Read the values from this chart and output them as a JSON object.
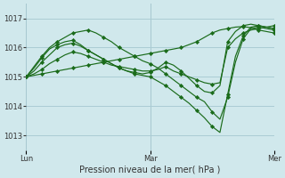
{
  "xlabel": "Pression niveau de la mer( hPa )",
  "bg_color": "#d0e8ec",
  "grid_color": "#aaccd4",
  "line_color": "#1a6b1a",
  "marker_color": "#1a6b1a",
  "ylim": [
    1012.5,
    1017.5
  ],
  "yticks": [
    1013,
    1014,
    1015,
    1016,
    1017
  ],
  "day_labels": [
    "Lun",
    "Mar",
    "Mer"
  ],
  "day_positions": [
    0,
    16,
    32
  ],
  "xlim": [
    0,
    32
  ],
  "lines": [
    [
      1015.0,
      1015.05,
      1015.1,
      1015.15,
      1015.2,
      1015.25,
      1015.3,
      1015.35,
      1015.4,
      1015.45,
      1015.5,
      1015.55,
      1015.6,
      1015.65,
      1015.7,
      1015.75,
      1015.8,
      1015.85,
      1015.9,
      1015.95,
      1016.0,
      1016.1,
      1016.2,
      1016.35,
      1016.5,
      1016.6,
      1016.65,
      1016.7,
      1016.72,
      1016.68,
      1016.6,
      1016.55,
      1016.5
    ],
    [
      1015.0,
      1015.1,
      1015.25,
      1015.45,
      1015.6,
      1015.75,
      1015.85,
      1015.8,
      1015.7,
      1015.6,
      1015.5,
      1015.4,
      1015.35,
      1015.3,
      1015.25,
      1015.2,
      1015.2,
      1015.25,
      1015.35,
      1015.2,
      1015.1,
      1015.0,
      1014.9,
      1014.8,
      1014.75,
      1014.8,
      1016.0,
      1016.3,
      1016.5,
      1016.6,
      1016.65,
      1016.7,
      1016.75
    ],
    [
      1015.0,
      1015.2,
      1015.5,
      1015.75,
      1016.0,
      1016.1,
      1016.15,
      1016.05,
      1015.9,
      1015.75,
      1015.6,
      1015.45,
      1015.3,
      1015.2,
      1015.15,
      1015.1,
      1015.15,
      1015.3,
      1015.5,
      1015.4,
      1015.2,
      1014.95,
      1014.7,
      1014.5,
      1014.45,
      1014.7,
      1016.2,
      1016.55,
      1016.75,
      1016.8,
      1016.75,
      1016.7,
      1016.65
    ],
    [
      1015.0,
      1015.3,
      1015.65,
      1015.95,
      1016.1,
      1016.2,
      1016.25,
      1016.1,
      1015.9,
      1015.75,
      1015.6,
      1015.45,
      1015.3,
      1015.2,
      1015.1,
      1015.05,
      1015.0,
      1014.85,
      1014.7,
      1014.5,
      1014.3,
      1014.1,
      1013.85,
      1013.6,
      1013.3,
      1013.1,
      1014.4,
      1015.7,
      1016.4,
      1016.7,
      1016.75,
      1016.7,
      1016.65
    ],
    [
      1015.0,
      1015.35,
      1015.7,
      1016.0,
      1016.2,
      1016.35,
      1016.5,
      1016.55,
      1016.6,
      1016.5,
      1016.35,
      1016.2,
      1016.0,
      1015.85,
      1015.7,
      1015.55,
      1015.45,
      1015.3,
      1015.1,
      1014.9,
      1014.7,
      1014.5,
      1014.3,
      1014.15,
      1013.8,
      1013.55,
      1014.3,
      1015.5,
      1016.3,
      1016.65,
      1016.7,
      1016.65,
      1016.6
    ]
  ],
  "marker_every": 2
}
